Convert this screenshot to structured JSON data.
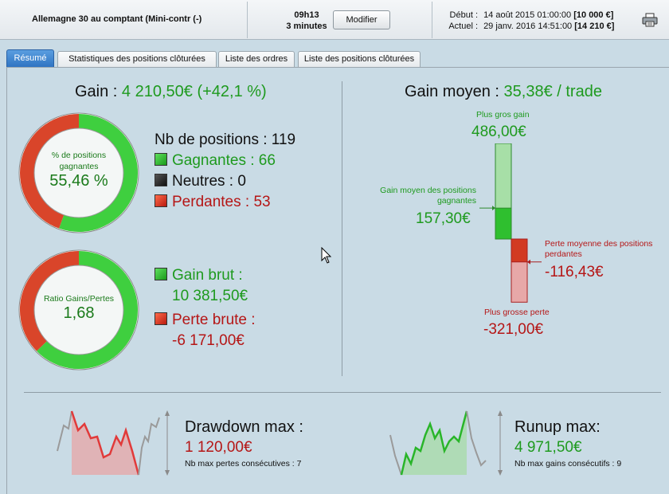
{
  "header": {
    "instrument": "Allemagne 30 au comptant (Mini-contr (-)",
    "time": "09h13",
    "duration": "3 minutes",
    "modify_label": "Modifier",
    "start_label": "Début :",
    "start_date": "14 août 2015 01:00:00",
    "start_value": "[10 000 €]",
    "current_label": "Actuel :",
    "current_date": "29 janv. 2016 14:51:00",
    "current_value": "[14 210 €]",
    "print_icon": "printer-icon"
  },
  "tabs": [
    {
      "label": "Résumé",
      "active": true
    },
    {
      "label": "Statistiques des positions clôturées",
      "active": false
    },
    {
      "label": "Liste des ordres",
      "active": false
    },
    {
      "label": "Liste des positions clôturées",
      "active": false
    }
  ],
  "summary": {
    "gain_label": "Gain :",
    "gain_value": "4 210,50€ (+42,1 %)",
    "win_rate_label": "% de positions gagnantes",
    "win_rate_value": "55,46 %",
    "win_rate_fraction": 0.5546,
    "positions_label": "Nb de positions : 119",
    "winners_label": "Gagnantes : 66",
    "neutral_label": "Neutres : 0",
    "losers_label": "Perdantes : 53",
    "ratio_label": "Ratio Gains/Pertes",
    "ratio_value": "1,68",
    "ratio_fraction": 0.627,
    "gross_gain_label": "Gain brut :",
    "gross_gain_value": "10 381,50€",
    "gross_loss_label": "Perte brute :",
    "gross_loss_value": "-6 171,00€"
  },
  "average": {
    "title_label": "Gain moyen :",
    "title_value": "35,38€ / trade",
    "max_gain_label": "Plus gros gain",
    "max_gain_value": "486,00€",
    "max_gain_amount": 486.0,
    "avg_gain_label": "Gain moyen des positions gagnantes",
    "avg_gain_value": "157,30€",
    "avg_gain_amount": 157.3,
    "avg_loss_label": "Perte moyenne des positions perdantes",
    "avg_loss_value": "-116,43€",
    "avg_loss_amount": -116.43,
    "max_loss_label": "Plus grosse perte",
    "max_loss_value": "-321,00€",
    "max_loss_amount": -321.0
  },
  "drawdown": {
    "title": "Drawdown max :",
    "value": "1 120,00€",
    "sub": "Nb max pertes consécutives : 7"
  },
  "runup": {
    "title": "Runup max:",
    "value": "4 971,50€",
    "sub": "Nb max gains consécutifs : 9"
  },
  "colors": {
    "green": "#1e9a1e",
    "red": "#b51616",
    "active_tab": "#2f74c2",
    "background": "#c9dbe5"
  }
}
